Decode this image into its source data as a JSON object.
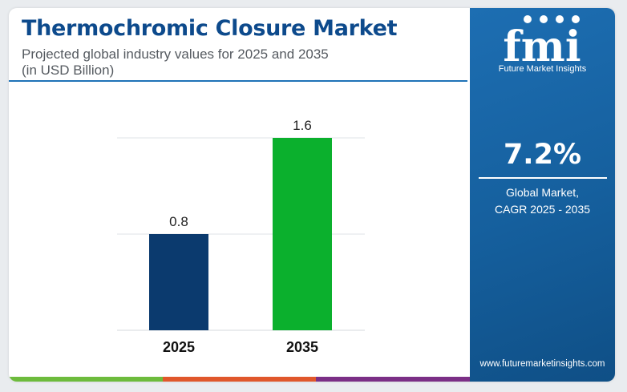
{
  "header": {
    "title": "Thermochromic Closure Market",
    "subtitle_line1": "Projected global industry values for 2025 and 2035",
    "subtitle_line2": "(in USD Billion)"
  },
  "chart_data": {
    "type": "bar",
    "categories": [
      "2025",
      "2035"
    ],
    "series": [
      {
        "values": [
          0.8,
          1.6
        ]
      }
    ],
    "data_labels": [
      "0.8",
      "1.6"
    ],
    "bar_colors": [
      "#0b3a6e",
      "#0bb02d"
    ],
    "ylim": [
      0,
      1.6
    ],
    "grid": true,
    "xlabel": "",
    "ylabel": ""
  },
  "sidebar": {
    "logo_text": "fmi",
    "logo_subtitle": "Future Market Insights",
    "cagr_value": "7.2%",
    "cagr_label_line1": "Global Market,",
    "cagr_label_line2": "CAGR 2025 - 2035",
    "website": "www.futuremarketinsights.com"
  },
  "colors": {
    "title": "#0d4a8c",
    "sidebar": "#155f9d",
    "stripe": [
      "#6dbb3c",
      "#e0572b",
      "#7b2f86"
    ]
  }
}
